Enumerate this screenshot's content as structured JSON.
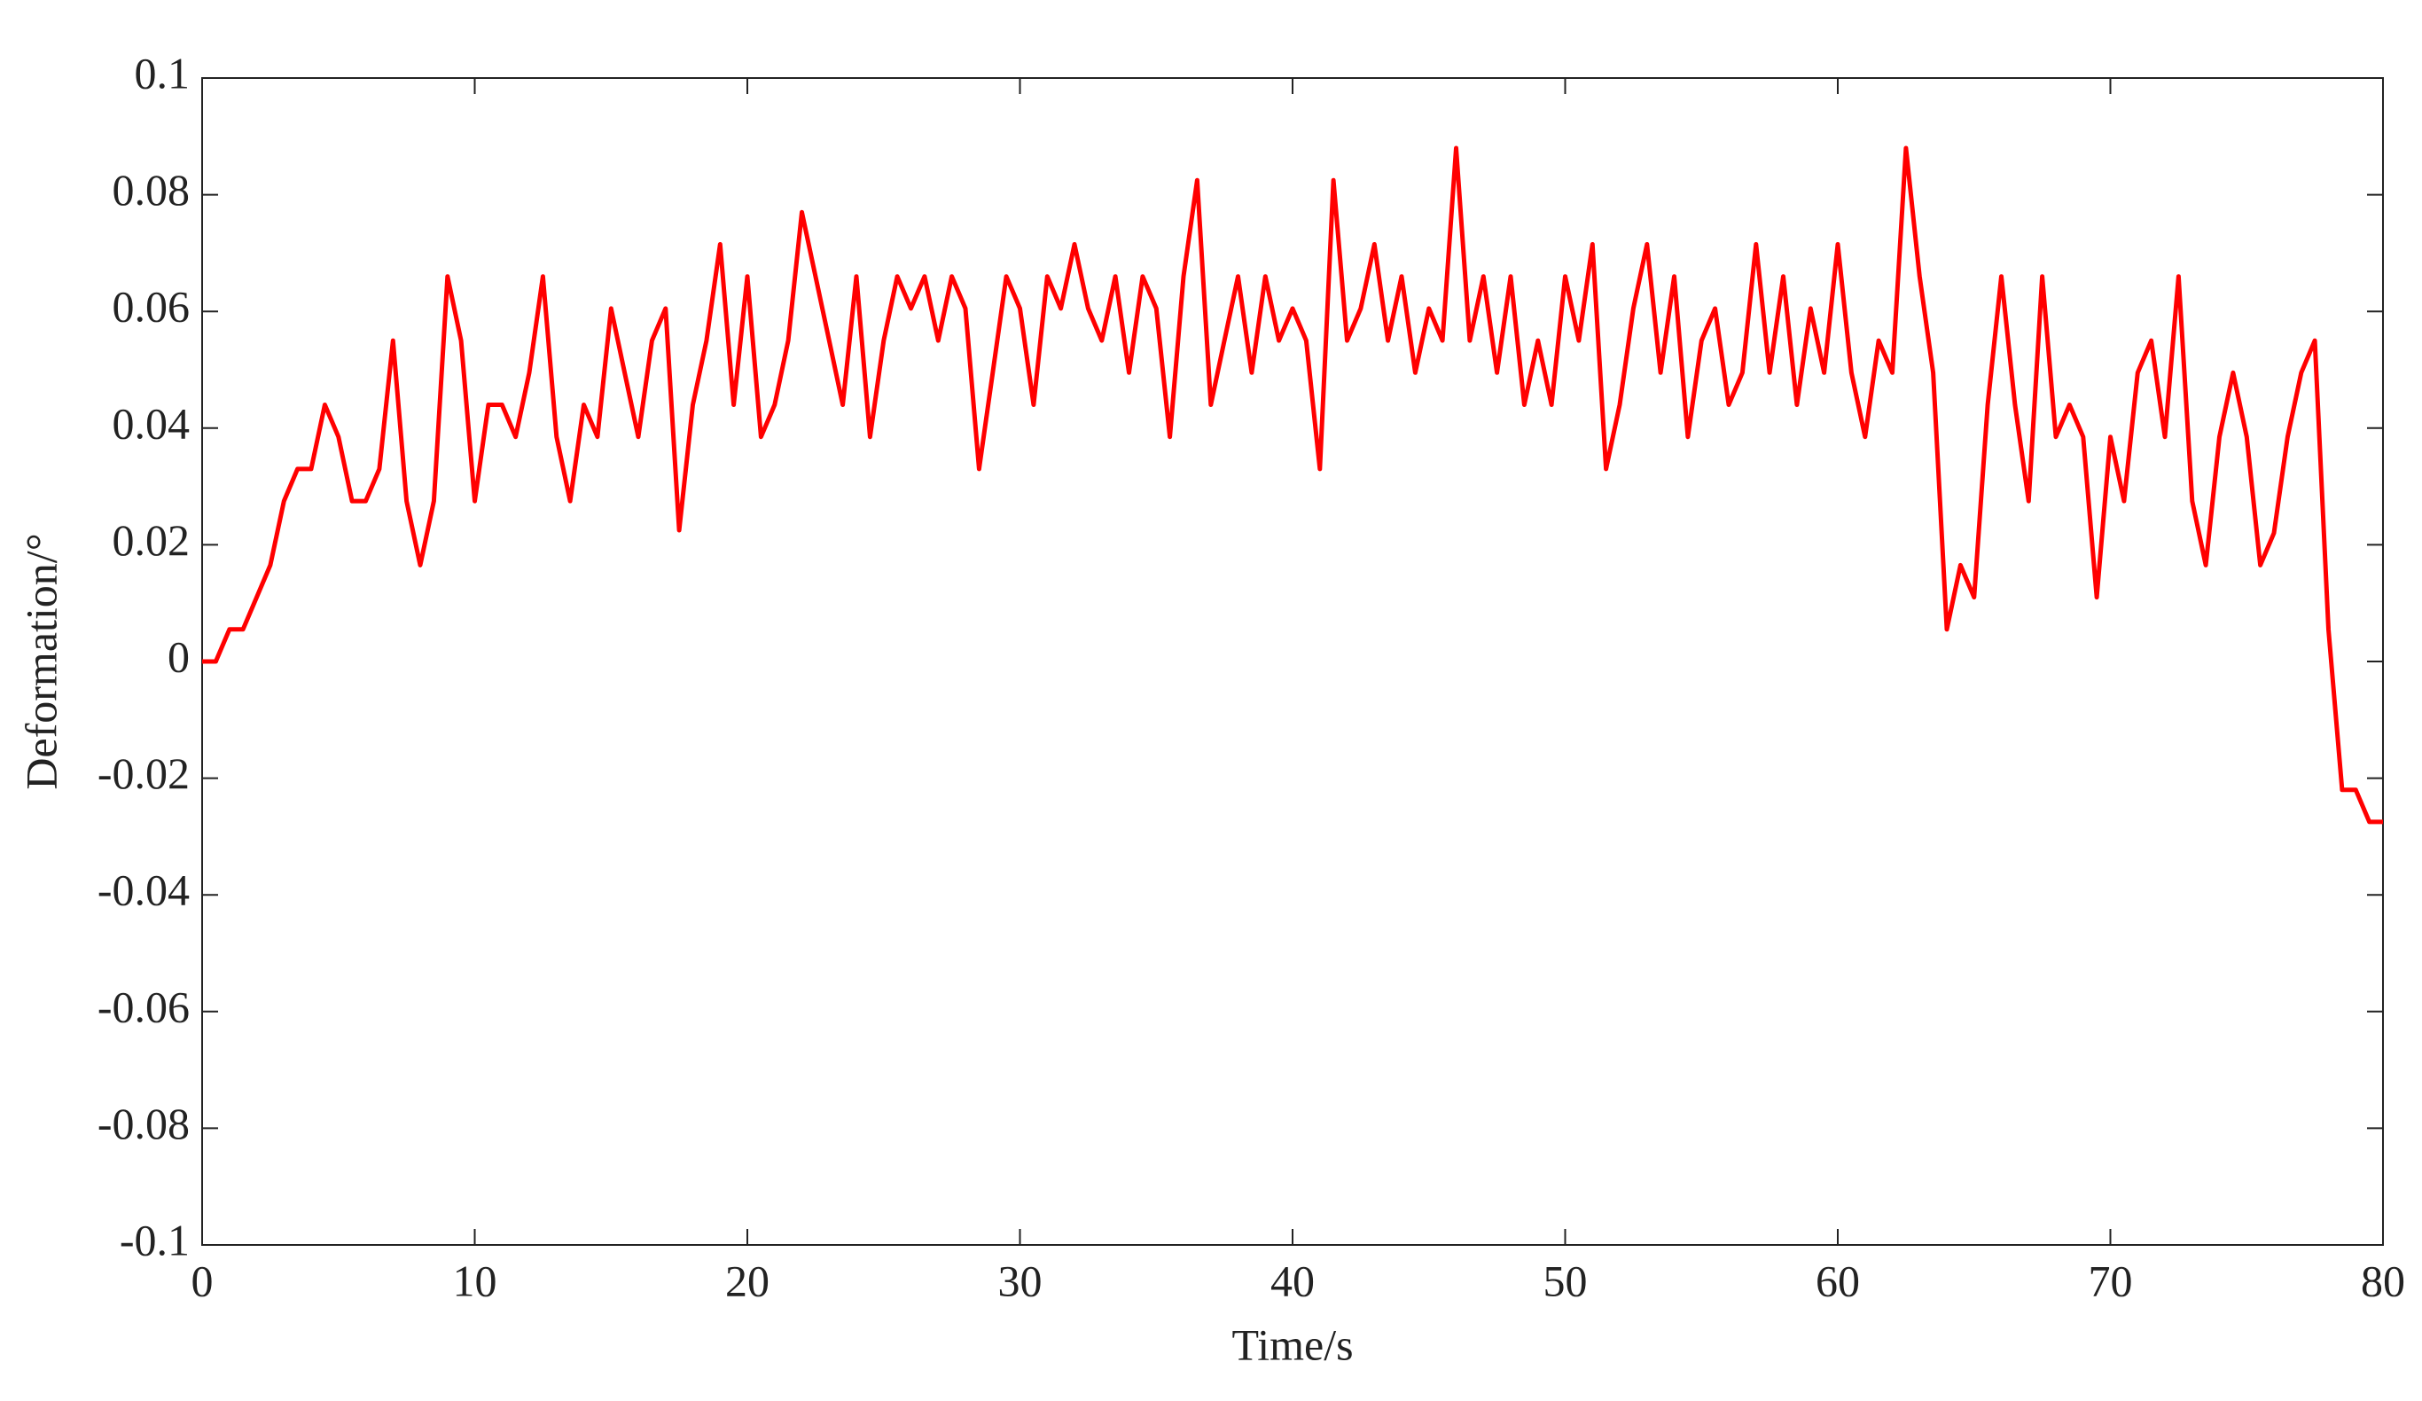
{
  "chart_data": {
    "type": "line",
    "xlabel": "Time/s",
    "ylabel": "Deformation/°",
    "x": [
      0,
      0.5,
      1,
      1.5,
      2,
      2.5,
      3,
      3.5,
      4,
      4.5,
      5,
      5.5,
      6,
      6.5,
      7,
      7.5,
      8,
      8.5,
      9,
      9.5,
      10,
      10.5,
      11,
      11.5,
      12,
      12.5,
      13,
      13.5,
      14,
      14.5,
      15,
      15.5,
      16,
      16.5,
      17,
      17.5,
      18,
      18.5,
      19,
      19.5,
      20,
      20.5,
      21,
      21.5,
      22,
      22.5,
      23,
      23.5,
      24,
      24.5,
      25,
      25.5,
      26,
      26.5,
      27,
      27.5,
      28,
      28.5,
      29,
      29.5,
      30,
      30.5,
      31,
      31.5,
      32,
      32.5,
      33,
      33.5,
      34,
      34.5,
      35,
      35.5,
      36,
      36.5,
      37,
      37.5,
      38,
      38.5,
      39,
      39.5,
      40,
      40.5,
      41,
      41.5,
      42,
      42.5,
      43,
      43.5,
      44,
      44.5,
      45,
      45.5,
      46,
      46.5,
      47,
      47.5,
      48,
      48.5,
      49,
      49.5,
      50,
      50.5,
      51,
      51.5,
      52,
      52.5,
      53,
      53.5,
      54,
      54.5,
      55,
      55.5,
      56,
      56.5,
      57,
      57.5,
      58,
      58.5,
      59,
      59.5,
      60,
      60.5,
      61,
      61.5,
      62,
      62.5,
      63,
      63.5,
      64,
      64.5,
      65,
      65.5,
      66,
      66.5,
      67,
      67.5,
      68,
      68.5,
      69,
      69.5,
      70,
      70.5,
      71,
      71.5,
      72,
      72.5,
      73,
      73.5,
      74,
      74.5,
      75,
      75.5,
      76,
      76.5,
      77,
      77.5,
      78,
      78.5,
      79,
      79.5,
      80
    ],
    "series": [
      {
        "color": "#ff0000",
        "values": [
          0,
          0,
          0.0055,
          0.0055,
          0.011,
          0.0165,
          0.0275,
          0.033,
          0.033,
          0.044,
          0.0385,
          0.0275,
          0.0275,
          0.033,
          0.055,
          0.0275,
          0.0165,
          0.0275,
          0.066,
          0.055,
          0.0275,
          0.044,
          0.044,
          0.0385,
          0.0495,
          0.066,
          0.0385,
          0.0275,
          0.044,
          0.0385,
          0.0605,
          0.0495,
          0.0385,
          0.055,
          0.0605,
          0.0225,
          0.044,
          0.055,
          0.0715,
          0.044,
          0.066,
          0.0385,
          0.044,
          0.055,
          0.077,
          0.066,
          0.055,
          0.044,
          0.066,
          0.0385,
          0.055,
          0.066,
          0.0605,
          0.066,
          0.055,
          0.066,
          0.0605,
          0.033,
          0.0495,
          0.066,
          0.0605,
          0.044,
          0.066,
          0.0605,
          0.0715,
          0.0605,
          0.055,
          0.066,
          0.0495,
          0.066,
          0.0605,
          0.0385,
          0.066,
          0.0825,
          0.044,
          0.055,
          0.066,
          0.0495,
          0.066,
          0.055,
          0.0605,
          0.055,
          0.033,
          0.0825,
          0.055,
          0.0605,
          0.0715,
          0.055,
          0.066,
          0.0495,
          0.0605,
          0.055,
          0.088,
          0.055,
          0.066,
          0.0495,
          0.066,
          0.044,
          0.055,
          0.044,
          0.066,
          0.055,
          0.0715,
          0.033,
          0.044,
          0.0605,
          0.0715,
          0.0495,
          0.066,
          0.0385,
          0.055,
          0.0605,
          0.044,
          0.0495,
          0.0715,
          0.0495,
          0.066,
          0.044,
          0.0605,
          0.0495,
          0.0715,
          0.0495,
          0.0385,
          0.055,
          0.0495,
          0.088,
          0.066,
          0.0495,
          0.0055,
          0.0165,
          0.011,
          0.044,
          0.066,
          0.044,
          0.0275,
          0.066,
          0.0385,
          0.044,
          0.0385,
          0.011,
          0.0385,
          0.0275,
          0.0495,
          0.055,
          0.0385,
          0.066,
          0.0275,
          0.0165,
          0.0385,
          0.0495,
          0.0385,
          0.0165,
          0.022,
          0.0385,
          0.0495,
          0.055,
          0.0055,
          -0.022,
          -0.022,
          -0.0275,
          -0.0275
        ]
      }
    ],
    "xlim": [
      0,
      80
    ],
    "xticks": [
      0,
      10,
      20,
      30,
      40,
      50,
      60,
      70,
      80
    ],
    "ylim": [
      -0.1,
      0.1
    ],
    "yticks": [
      -0.1,
      -0.08,
      -0.06,
      -0.04,
      -0.02,
      0,
      0.02,
      0.04,
      0.06,
      0.08,
      0.1
    ],
    "grid": false
  }
}
